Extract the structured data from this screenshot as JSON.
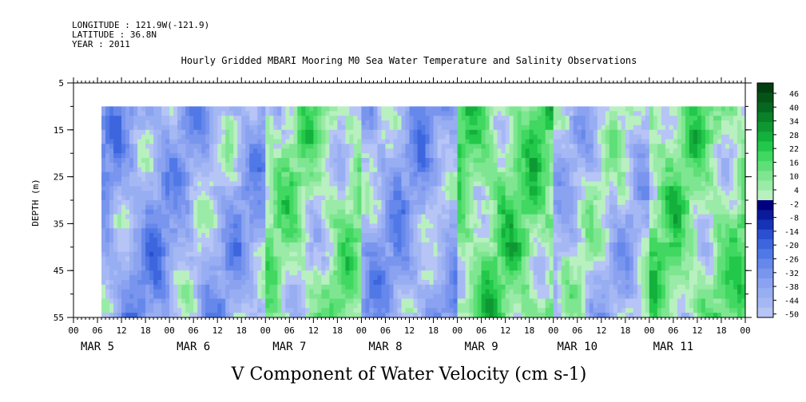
{
  "header": {
    "longitude": "LONGITUDE : 121.9W(-121.9)",
    "latitude": "LATITUDE : 36.8N",
    "year": "YEAR : 2011",
    "title": "Hourly Gridded MBARI Mooring M0 Sea Water Temperature and Salinity Observations"
  },
  "chart_data": {
    "type": "heatmap",
    "title": "V Component of Water Velocity (cm s-1)",
    "ylabel": "DEPTH (m)",
    "xlabel": "",
    "ylim": [
      55,
      5
    ],
    "y_ticks": [
      "5",
      "15",
      "25",
      "35",
      "45",
      "55"
    ],
    "x_hour_labels": [
      "00",
      "06",
      "12",
      "18",
      "00",
      "06",
      "12",
      "18",
      "00",
      "06",
      "12",
      "18",
      "00",
      "06",
      "12",
      "18",
      "00",
      "06",
      "12",
      "18",
      "00",
      "06",
      "12",
      "18",
      "00",
      "06",
      "12",
      "18",
      "00"
    ],
    "date_labels": [
      "MAR  5",
      "MAR  6",
      "MAR  7",
      "MAR  8",
      "MAR  9",
      "MAR 10",
      "MAR 11"
    ],
    "data_depth_range": [
      10,
      55
    ],
    "data_time_range_hours": [
      7,
      168
    ],
    "colorbar": {
      "labels": [
        "46",
        "40",
        "34",
        "28",
        "22",
        "16",
        "10",
        "4",
        "-2",
        "-8",
        "-14",
        "-20",
        "-26",
        "-32",
        "-38",
        "-44",
        "-50"
      ],
      "range": [
        -50,
        50
      ],
      "colors_negative": [
        "#000080",
        "#0a1a9a",
        "#1633b8",
        "#2a4fd0",
        "#3d66de",
        "#5078e6",
        "#6688ea",
        "#7995ee",
        "#8aa2f0",
        "#98aef2",
        "#a6b8f4",
        "#b6c4f6"
      ],
      "colors_positive": [
        "#b8f0c0",
        "#9aeaa8",
        "#7ee690",
        "#5fdf78",
        "#40d860",
        "#22c84a",
        "#14b03c",
        "#0e9832",
        "#0a8028",
        "#066820",
        "#045418",
        "#023e10"
      ]
    },
    "field_summary": [
      {
        "day": "MAR 5",
        "hours": [
          7,
          24
        ],
        "v": -14,
        "note": "mostly southward, strongest near MAR 5 18h mid-depth"
      },
      {
        "day": "MAR 6",
        "hours": [
          24,
          48
        ],
        "v": -10,
        "note": "southward with weak northward near bottom after 18h"
      },
      {
        "day": "MAR 7",
        "hours": [
          48,
          72
        ],
        "v": 6,
        "note": "northward streak near 10h and 15h"
      },
      {
        "day": "MAR 8",
        "hours": [
          72,
          96
        ],
        "v": -12,
        "note": "strong southward band around 18h"
      },
      {
        "day": "MAR 9",
        "hours": [
          96,
          120
        ],
        "v": 12,
        "note": "northward most of the day"
      },
      {
        "day": "MAR 10",
        "hours": [
          120,
          144
        ],
        "v": -4,
        "note": "mixed, northward near surface"
      },
      {
        "day": "MAR 11",
        "hours": [
          144,
          168
        ],
        "v": 10,
        "note": "northward in upper column"
      }
    ]
  }
}
